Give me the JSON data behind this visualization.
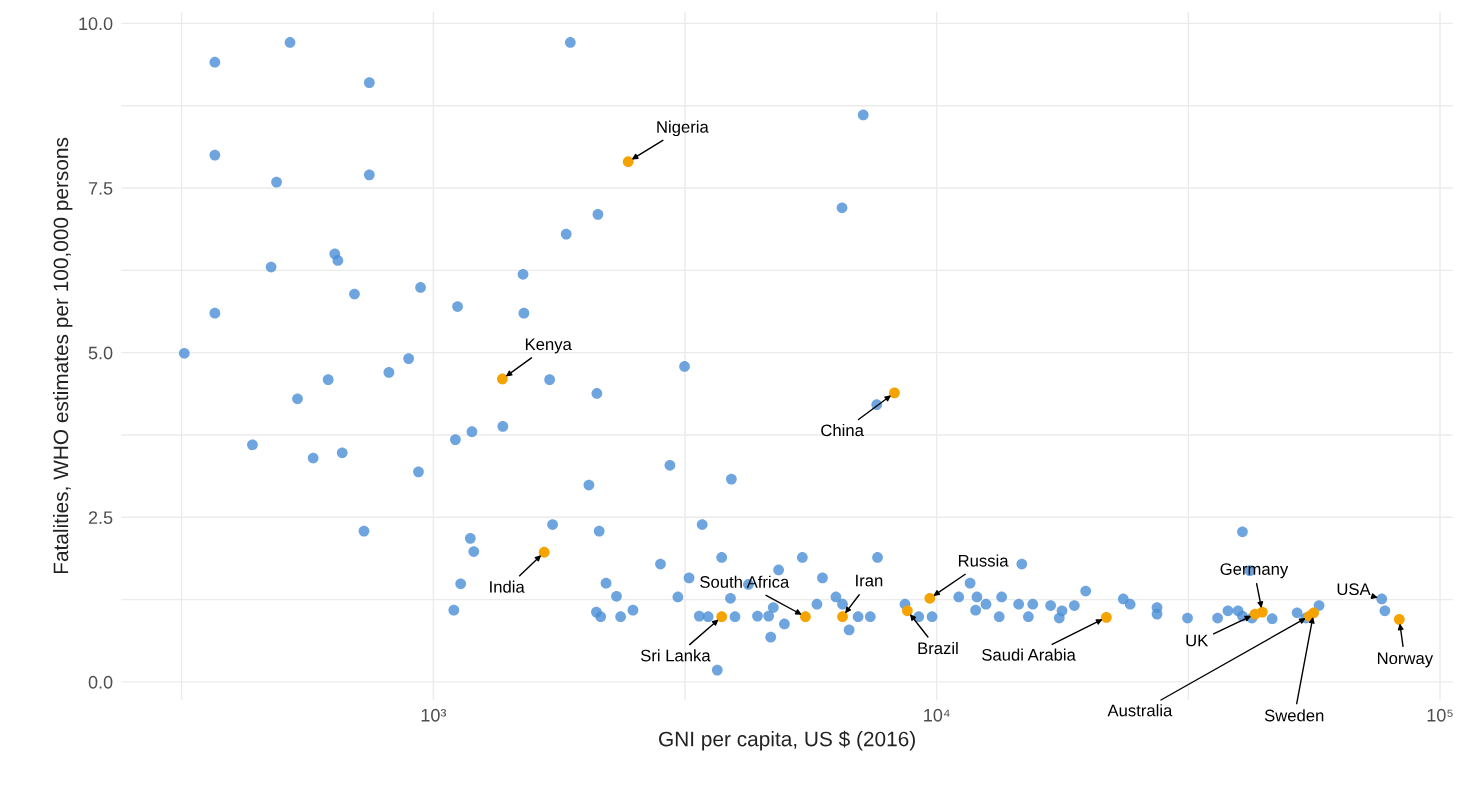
{
  "chart_data": {
    "type": "scatter",
    "xlabel": "GNI per capita, US $ (2016)",
    "ylabel": "Fatalities, WHO estimates per 100,000 persons",
    "log": "x",
    "grid": true,
    "marker": "circle",
    "xlim": [
      240,
      106000
    ],
    "ylim": [
      -0.275,
      10.175
    ],
    "xticks": [
      {
        "value": 316,
        "label": null
      },
      {
        "value": 1000,
        "label": "10³"
      },
      {
        "value": 3162,
        "label": null
      },
      {
        "value": 10000,
        "label": "10⁴"
      },
      {
        "value": 31623,
        "label": null
      },
      {
        "value": 100000,
        "label": "10⁵"
      }
    ],
    "yticks": [
      {
        "value": 0,
        "label": "0.0"
      },
      {
        "value": 1.25,
        "label": null
      },
      {
        "value": 2.5,
        "label": "2.5"
      },
      {
        "value": 3.75,
        "label": null
      },
      {
        "value": 5,
        "label": "5.0"
      },
      {
        "value": 6.25,
        "label": null
      },
      {
        "value": 7.5,
        "label": "7.5"
      },
      {
        "value": 8.75,
        "label": null
      },
      {
        "value": 10,
        "label": "10.0"
      }
    ],
    "series": [
      {
        "color": "#4a8fd6",
        "x": [
          519,
          368,
          746,
          368,
          488,
          746,
          637,
          646,
          476,
          697,
          943,
          1117,
          1507,
          1513,
          1836,
          2123,
          368,
          320,
          893,
          816,
          618,
          537,
          1702,
          2113,
          1374,
          1193,
          1106,
          437,
          577,
          659,
          934,
          2037,
          728,
          1725,
          1184,
          1203,
          2135,
          1133,
          1098,
          2108,
          1871,
          7145,
          6485,
          3155,
          7600,
          2951,
          3909,
          3420,
          2826,
          3740,
          5408,
          7628,
          14760,
          2203,
          2311,
          2492,
          2355,
          2150,
          3221,
          3060,
          3375,
          3515,
          3974,
          4226,
          3893,
          4405,
          4636,
          4852,
          4735,
          4982,
          4680,
          3665,
          5930,
          5782,
          6306,
          6500,
          6700,
          6980,
          7380,
          8650,
          9210,
          9790,
          11060,
          11650,
          12020,
          12530,
          13460,
          11950,
          13310,
          14550,
          15520,
          15210,
          19770,
          18770,
          17740,
          17520,
          16840,
          23480,
          24230,
          27400,
          27400,
          31500,
          36150,
          37900,
          39700,
          40500,
          40500,
          41900,
          46400,
          42300,
          52000,
          57500,
          54100,
          76600,
          77700
        ],
        "values": [
          9.71,
          9.41,
          9.1,
          8.0,
          7.59,
          7.7,
          6.5,
          6.4,
          6.3,
          5.89,
          5.99,
          5.7,
          6.19,
          5.6,
          6.8,
          7.1,
          5.6,
          4.99,
          4.91,
          4.7,
          4.59,
          4.3,
          4.59,
          4.38,
          3.88,
          3.8,
          3.68,
          3.6,
          3.4,
          3.48,
          3.19,
          2.99,
          2.29,
          2.39,
          2.18,
          1.98,
          2.29,
          1.49,
          1.09,
          1.06,
          9.71,
          8.61,
          7.2,
          4.79,
          4.21,
          3.29,
          3.08,
          2.39,
          1.79,
          1.89,
          1.89,
          1.89,
          1.79,
          1.5,
          1.3,
          1.09,
          0.99,
          0.99,
          1.58,
          1.29,
          1.0,
          0.99,
          0.99,
          1.48,
          1.27,
          1.0,
          1.0,
          1.7,
          1.13,
          0.88,
          0.68,
          0.18,
          1.58,
          1.18,
          1.29,
          1.18,
          0.79,
          0.99,
          0.99,
          1.18,
          0.99,
          0.99,
          1.29,
          1.5,
          1.29,
          1.18,
          1.29,
          1.09,
          0.99,
          1.18,
          1.18,
          0.99,
          1.38,
          1.16,
          1.08,
          0.97,
          1.16,
          1.26,
          1.18,
          1.13,
          1.03,
          0.97,
          0.97,
          1.08,
          1.08,
          1.0,
          2.28,
          1.69,
          0.96,
          0.97,
          1.05,
          1.16,
          0.97,
          1.26,
          1.08
        ]
      },
      {
        "color": "#f5a300",
        "x": [
          1371,
          2438,
          1660,
          8242,
          3740,
          5485,
          6500,
          9690,
          8745,
          21730,
          42900,
          44350,
          55000,
          56100,
          83000
        ],
        "values": [
          4.6,
          7.9,
          1.97,
          4.39,
          0.99,
          0.99,
          0.99,
          1.27,
          1.08,
          0.98,
          1.03,
          1.06,
          1.0,
          1.05,
          0.95
        ]
      }
    ],
    "annotations": [
      {
        "text": "Kenya",
        "x": 1371,
        "y": 4.6
      },
      {
        "text": "Nigeria",
        "x": 2438,
        "y": 7.9
      },
      {
        "text": "India",
        "x": 1660,
        "y": 1.97
      },
      {
        "text": "China",
        "x": 8242,
        "y": 4.39
      },
      {
        "text": "Sri Lanka",
        "x": 3740,
        "y": 0.99
      },
      {
        "text": "South Africa",
        "x": 5485,
        "y": 0.99
      },
      {
        "text": "Iran",
        "x": 6500,
        "y": 0.99
      },
      {
        "text": "Russia",
        "x": 9690,
        "y": 1.27
      },
      {
        "text": "Brazil",
        "x": 8745,
        "y": 1.08
      },
      {
        "text": "Saudi Arabia",
        "x": 21730,
        "y": 0.98
      },
      {
        "text": "UK",
        "x": 42900,
        "y": 1.03
      },
      {
        "text": "Germany",
        "x": 44350,
        "y": 1.06
      },
      {
        "text": "Australia",
        "x": 55000,
        "y": 1.0
      },
      {
        "text": "Sweden",
        "x": 56100,
        "y": 1.05
      },
      {
        "text": "USA",
        "x": 76600,
        "y": 1.26
      },
      {
        "text": "Norway",
        "x": 83000,
        "y": 0.95
      }
    ]
  }
}
